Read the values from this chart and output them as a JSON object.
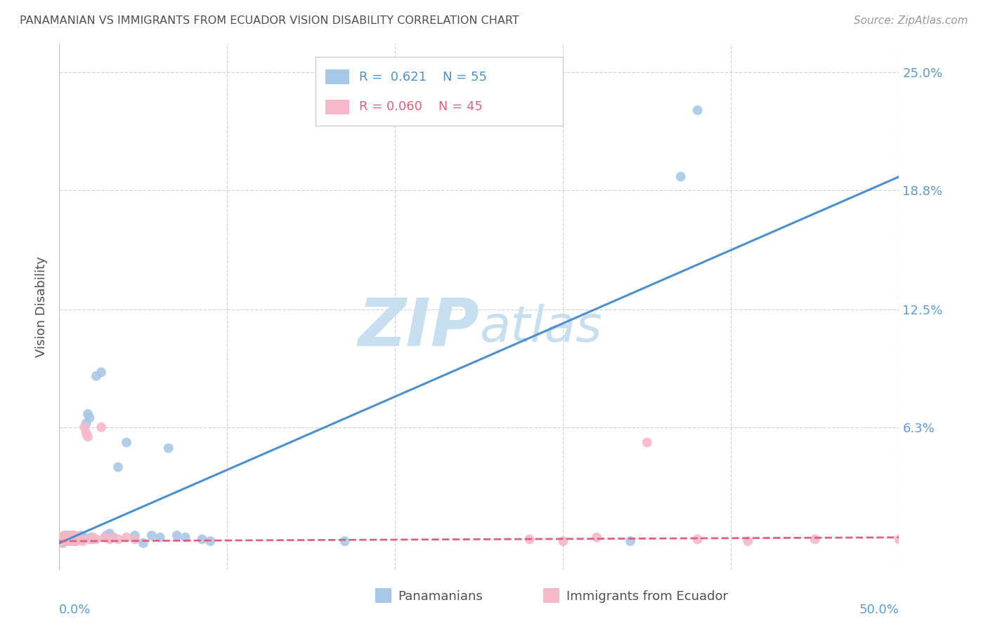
{
  "title": "PANAMANIAN VS IMMIGRANTS FROM ECUADOR VISION DISABILITY CORRELATION CHART",
  "source": "Source: ZipAtlas.com",
  "ylabel": "Vision Disability",
  "ytick_values": [
    0.063,
    0.125,
    0.188,
    0.25
  ],
  "ytick_labels": [
    "6.3%",
    "12.5%",
    "18.8%",
    "25.0%"
  ],
  "xlim": [
    0.0,
    0.5
  ],
  "ylim": [
    -0.012,
    0.265
  ],
  "blue_color": "#a8c8e8",
  "pink_color": "#f4b8c8",
  "line_blue": "#4a90d0",
  "line_pink": "#e06080",
  "background_color": "#ffffff",
  "grid_color": "#c8c8d0",
  "axis_label_color": "#5b9bd5",
  "title_color": "#505050",
  "watermark_color": "#c8dff0",
  "blue_line_x0": 0.0,
  "blue_line_y0": 0.002,
  "blue_line_x1": 0.5,
  "blue_line_y1": 0.195,
  "pink_line_x0": 0.0,
  "pink_line_y0": 0.003,
  "pink_line_x1": 0.5,
  "pink_line_y1": 0.005,
  "blue_x": [
    0.001,
    0.001,
    0.002,
    0.002,
    0.002,
    0.003,
    0.003,
    0.003,
    0.004,
    0.004,
    0.004,
    0.005,
    0.005,
    0.005,
    0.006,
    0.006,
    0.007,
    0.007,
    0.007,
    0.008,
    0.008,
    0.009,
    0.009,
    0.01,
    0.01,
    0.011,
    0.012,
    0.013,
    0.014,
    0.015,
    0.016,
    0.017,
    0.018,
    0.019,
    0.02,
    0.022,
    0.025,
    0.028,
    0.03,
    0.032,
    0.035,
    0.04,
    0.045,
    0.05,
    0.055,
    0.06,
    0.065,
    0.07,
    0.075,
    0.085,
    0.09,
    0.17,
    0.34,
    0.37,
    0.38
  ],
  "blue_y": [
    0.004,
    0.003,
    0.005,
    0.004,
    0.002,
    0.006,
    0.004,
    0.003,
    0.005,
    0.003,
    0.004,
    0.006,
    0.004,
    0.003,
    0.005,
    0.004,
    0.006,
    0.004,
    0.003,
    0.005,
    0.003,
    0.006,
    0.004,
    0.005,
    0.003,
    0.004,
    0.005,
    0.006,
    0.004,
    0.005,
    0.065,
    0.07,
    0.068,
    0.005,
    0.004,
    0.09,
    0.092,
    0.006,
    0.007,
    0.005,
    0.042,
    0.055,
    0.006,
    0.002,
    0.006,
    0.005,
    0.052,
    0.006,
    0.005,
    0.004,
    0.003,
    0.003,
    0.003,
    0.195,
    0.23
  ],
  "pink_x": [
    0.001,
    0.001,
    0.002,
    0.002,
    0.003,
    0.003,
    0.004,
    0.004,
    0.005,
    0.005,
    0.006,
    0.006,
    0.007,
    0.007,
    0.008,
    0.008,
    0.009,
    0.009,
    0.01,
    0.01,
    0.011,
    0.012,
    0.013,
    0.014,
    0.015,
    0.016,
    0.017,
    0.018,
    0.02,
    0.022,
    0.025,
    0.027,
    0.03,
    0.032,
    0.035,
    0.04,
    0.045,
    0.28,
    0.3,
    0.32,
    0.35,
    0.38,
    0.41,
    0.45,
    0.5
  ],
  "pink_y": [
    0.004,
    0.003,
    0.005,
    0.003,
    0.006,
    0.004,
    0.005,
    0.003,
    0.004,
    0.003,
    0.006,
    0.004,
    0.005,
    0.003,
    0.005,
    0.004,
    0.006,
    0.004,
    0.005,
    0.003,
    0.004,
    0.005,
    0.004,
    0.003,
    0.063,
    0.06,
    0.058,
    0.004,
    0.005,
    0.004,
    0.063,
    0.005,
    0.004,
    0.005,
    0.004,
    0.005,
    0.004,
    0.004,
    0.003,
    0.005,
    0.055,
    0.004,
    0.003,
    0.004,
    0.004
  ]
}
